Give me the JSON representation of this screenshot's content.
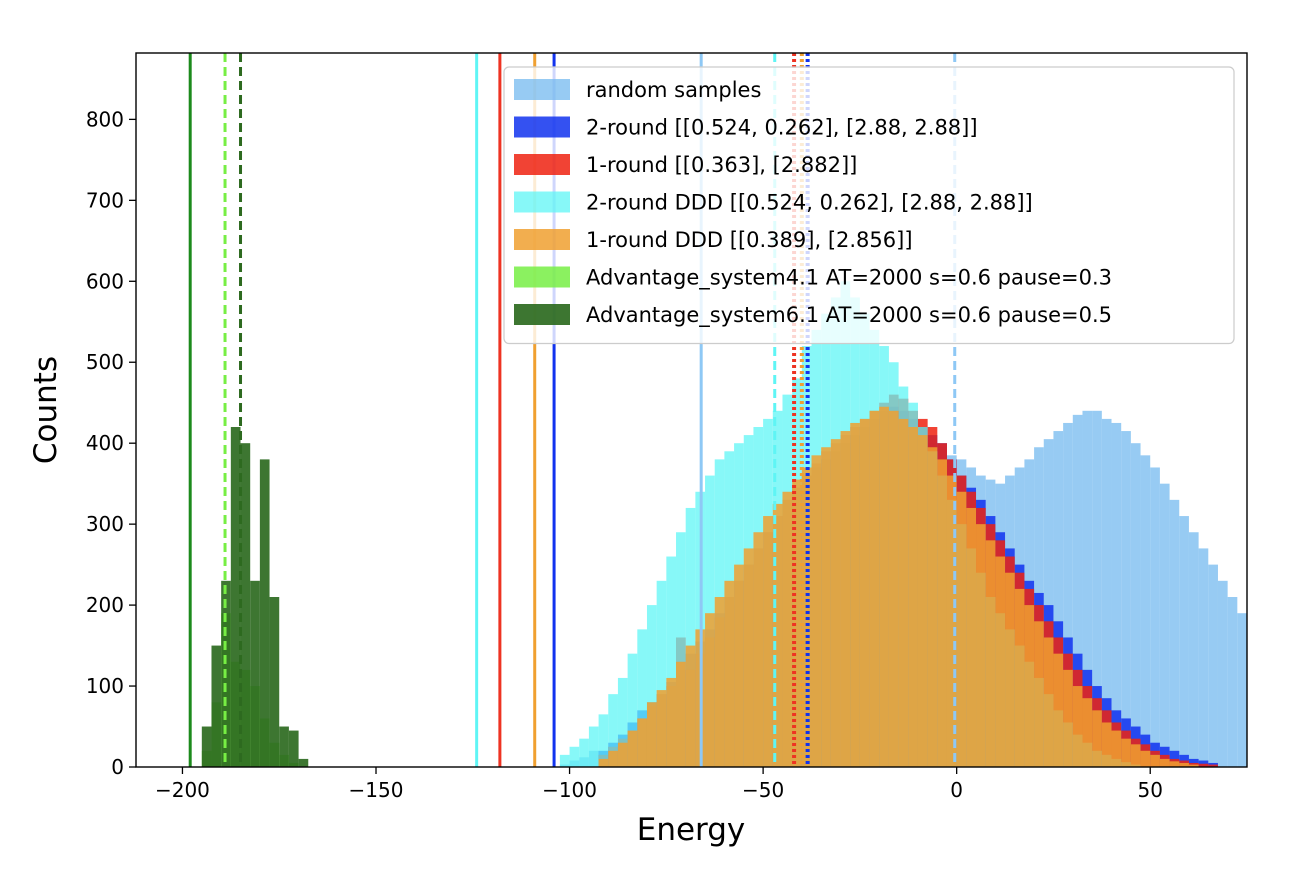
{
  "chart_data": {
    "type": "histogram",
    "xlabel": "Energy",
    "ylabel": "Counts",
    "xlim": [
      -212,
      75
    ],
    "ylim": [
      0,
      882
    ],
    "xticks": [
      -200,
      -150,
      -100,
      -50,
      0,
      50
    ],
    "xtick_labels": [
      "−200",
      "−150",
      "−100",
      "−50",
      "0",
      "50"
    ],
    "yticks": [
      0,
      100,
      200,
      300,
      400,
      500,
      600,
      700,
      800
    ],
    "ytick_labels": [
      "0",
      "100",
      "200",
      "300",
      "400",
      "500",
      "600",
      "700",
      "800"
    ],
    "bin_width": 2.5,
    "legend_position": "upper-right",
    "series": [
      {
        "name": "random samples",
        "color": "#74b9ef",
        "opacity": 0.75,
        "x_start": -102.5,
        "counts": [
          3,
          8,
          12,
          20,
          15,
          25,
          30,
          35,
          50,
          60,
          70,
          85,
          100,
          115,
          130,
          150,
          165,
          185,
          200,
          215,
          225,
          240,
          255,
          270,
          290,
          305,
          320,
          335,
          345,
          355,
          365,
          375,
          385,
          395,
          400,
          405,
          410,
          405,
          400,
          395,
          385,
          380,
          370,
          360,
          355,
          350,
          360,
          370,
          380,
          395,
          405,
          415,
          425,
          435,
          440,
          440,
          430,
          425,
          415,
          400,
          385,
          370,
          350,
          330,
          310,
          290,
          270,
          250,
          230,
          210,
          190,
          170,
          150,
          130,
          115,
          100,
          85,
          70,
          60,
          50,
          40,
          30,
          22,
          15,
          10,
          6
        ]
      },
      {
        "name": "2-round [[0.524, 0.262], [2.88, 2.88]]",
        "color": "#1133ee",
        "opacity": 0.85,
        "x_start": -92.5,
        "counts": [
          20,
          30,
          40,
          55,
          70,
          80,
          90,
          105,
          120,
          140,
          155,
          170,
          190,
          210,
          230,
          250,
          270,
          290,
          310,
          330,
          345,
          360,
          370,
          380,
          390,
          400,
          410,
          420,
          430,
          440,
          445,
          440,
          430,
          420,
          410,
          400,
          380,
          360,
          345,
          330,
          310,
          290,
          270,
          250,
          230,
          215,
          200,
          180,
          160,
          140,
          120,
          100,
          85,
          70,
          60,
          50,
          40,
          30,
          25,
          20,
          15,
          10,
          8,
          5
        ]
      },
      {
        "name": "1-round [[0.363], [2.882]]",
        "color": "#ee2211",
        "opacity": 0.85,
        "x_start": -92.5,
        "counts": [
          15,
          25,
          35,
          45,
          60,
          75,
          90,
          100,
          160,
          120,
          140,
          160,
          185,
          210,
          230,
          250,
          270,
          290,
          310,
          330,
          345,
          360,
          375,
          390,
          400,
          410,
          420,
          430,
          440,
          450,
          460,
          455,
          440,
          430,
          420,
          400,
          380,
          360,
          340,
          320,
          300,
          280,
          260,
          240,
          220,
          200,
          180,
          160,
          140,
          120,
          100,
          85,
          70,
          55,
          45,
          35,
          28,
          20,
          15,
          10,
          8,
          5,
          4,
          3
        ]
      },
      {
        "name": "2-round DDD [[0.524, 0.262], [2.88, 2.88]]",
        "color": "#5ff5f5",
        "opacity": 0.75,
        "x_start": -102.5,
        "counts": [
          15,
          25,
          35,
          50,
          65,
          90,
          110,
          140,
          170,
          200,
          230,
          260,
          290,
          320,
          340,
          360,
          380,
          390,
          400,
          410,
          420,
          430,
          440,
          460,
          480,
          520,
          540,
          560,
          580,
          600,
          580,
          560,
          540,
          520,
          500,
          470,
          450,
          420,
          390,
          360,
          330,
          300,
          270,
          240,
          210,
          190,
          170,
          150,
          130,
          110,
          90,
          70,
          55,
          40,
          30,
          20,
          15,
          10,
          6,
          3
        ]
      },
      {
        "name": "1-round DDD [[0.389], [2.856]]",
        "color": "#f0a030",
        "opacity": 0.85,
        "x_start": -92.5,
        "counts": [
          10,
          20,
          30,
          45,
          60,
          80,
          95,
          110,
          130,
          150,
          170,
          190,
          210,
          230,
          250,
          270,
          290,
          310,
          325,
          340,
          355,
          370,
          385,
          395,
          405,
          415,
          425,
          430,
          440,
          445,
          440,
          430,
          420,
          410,
          395,
          380,
          360,
          340,
          320,
          300,
          280,
          260,
          240,
          220,
          200,
          180,
          160,
          140,
          120,
          100,
          85,
          70,
          55,
          45,
          35,
          28,
          20,
          15,
          10,
          7,
          5,
          3
        ]
      },
      {
        "name": "Advantage_system4.1 AT=2000 s=0.6 pause=0.3",
        "color": "#77ee44",
        "opacity": 0.85,
        "x_start": -195,
        "counts": [
          20,
          80,
          190,
          130,
          120,
          100,
          60,
          30,
          15,
          5
        ]
      },
      {
        "name": "Advantage_system6.1 AT=2000 s=0.6 pause=0.5",
        "color": "#2d6a1f",
        "opacity": 0.92,
        "x_start": -195,
        "counts": [
          50,
          150,
          230,
          420,
          400,
          230,
          380,
          210,
          50,
          45,
          10
        ]
      }
    ],
    "vlines": [
      {
        "x": -198,
        "color": "#1c8a1c",
        "style": "solid"
      },
      {
        "x": -189,
        "color": "#77ee44",
        "style": "dashed"
      },
      {
        "x": -185,
        "color": "#2d6a1f",
        "style": "dashed"
      },
      {
        "x": -124,
        "color": "#5ff5f5",
        "style": "solid"
      },
      {
        "x": -118,
        "color": "#ee3322",
        "style": "solid"
      },
      {
        "x": -109,
        "color": "#f0a030",
        "style": "solid"
      },
      {
        "x": -104,
        "color": "#1133ee",
        "style": "solid"
      },
      {
        "x": -66,
        "color": "#8ec8f5",
        "style": "solid"
      },
      {
        "x": -47,
        "color": "#5ff5f5",
        "style": "dashed"
      },
      {
        "x": -42,
        "color": "#ee3322",
        "style": "dotted"
      },
      {
        "x": -40,
        "color": "#f0a030",
        "style": "dotted"
      },
      {
        "x": -38.5,
        "color": "#1133ee",
        "style": "dotted"
      },
      {
        "x": -0.5,
        "color": "#8ec8f5",
        "style": "dashed"
      }
    ]
  }
}
